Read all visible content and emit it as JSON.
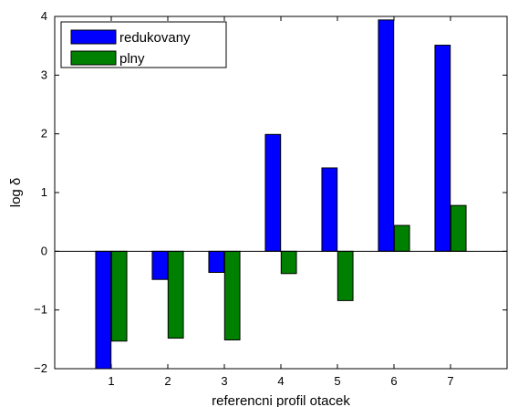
{
  "chart_data": {
    "type": "bar",
    "title": "",
    "xlabel": "referencni profil otacek",
    "ylabel": "log δ",
    "categories": [
      "1",
      "2",
      "3",
      "4",
      "5",
      "6",
      "7"
    ],
    "xlim": [
      0,
      8
    ],
    "ylim": [
      -2,
      4
    ],
    "yticks": [
      "−2",
      "−1",
      "0",
      "1",
      "2",
      "3",
      "4"
    ],
    "ytick_values": [
      -2,
      -1,
      0,
      1,
      2,
      3,
      4
    ],
    "grid": false,
    "legend_position": "top-left",
    "series": [
      {
        "name": "redukovany",
        "color": "#0000ff",
        "values": [
          -2.0,
          -0.48,
          -0.36,
          1.99,
          1.42,
          3.94,
          3.51
        ]
      },
      {
        "name": "plny",
        "color": "#008000",
        "values": [
          -1.53,
          -1.48,
          -1.51,
          -0.38,
          -0.84,
          0.44,
          0.78
        ]
      }
    ]
  }
}
